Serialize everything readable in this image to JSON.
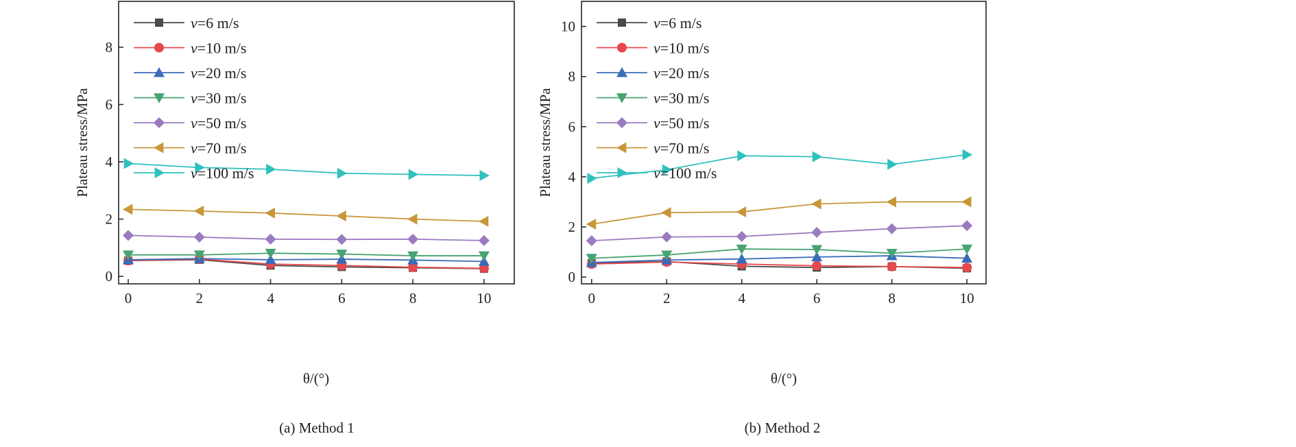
{
  "chart_data": [
    {
      "type": "line",
      "caption": "(a) Method 1",
      "xlabel": "θ/(°)",
      "ylabel": "Plateau stress/MPa",
      "x": [
        0,
        2,
        4,
        6,
        8,
        10
      ],
      "xticks": [
        0,
        2,
        4,
        6,
        8,
        10
      ],
      "yticks": [
        0,
        2,
        4,
        6,
        8
      ],
      "xlim": [
        -0.27,
        10.85
      ],
      "ylim": [
        -0.26,
        9.6
      ],
      "grid": false,
      "legend_position": "top-left",
      "series": [
        {
          "name": "v=6 m/s",
          "label_var": "v",
          "label_rest": "=6 m/s",
          "marker": "square",
          "color": "#4a4a4a",
          "values": [
            0.55,
            0.58,
            0.38,
            0.33,
            0.3,
            0.27
          ]
        },
        {
          "name": "v=10 m/s",
          "label_var": "v",
          "label_rest": "=10 m/s",
          "marker": "circle",
          "color": "#e5484d",
          "values": [
            0.55,
            0.6,
            0.43,
            0.38,
            0.32,
            0.28
          ]
        },
        {
          "name": "v=20 m/s",
          "label_var": "v",
          "label_rest": "=20 m/s",
          "marker": "triangle-up",
          "color": "#3a6bb8",
          "values": [
            0.58,
            0.62,
            0.58,
            0.6,
            0.57,
            0.52
          ]
        },
        {
          "name": "v=30 m/s",
          "label_var": "v",
          "label_rest": "=30 m/s",
          "marker": "triangle-down",
          "color": "#47a372",
          "values": [
            0.75,
            0.75,
            0.81,
            0.78,
            0.72,
            0.72
          ]
        },
        {
          "name": "v=50 m/s",
          "label_var": "v",
          "label_rest": "=50 m/s",
          "marker": "diamond",
          "color": "#9a7bc0",
          "values": [
            1.43,
            1.37,
            1.3,
            1.29,
            1.3,
            1.25
          ]
        },
        {
          "name": "v=70 m/s",
          "label_var": "v",
          "label_rest": "=70 m/s",
          "marker": "triangle-left",
          "color": "#c8973a",
          "values": [
            2.34,
            2.28,
            2.21,
            2.11,
            2.0,
            1.92
          ]
        },
        {
          "name": "v=100 m/s",
          "label_var": "v",
          "label_rest": "=100 m/s",
          "marker": "triangle-right",
          "color": "#30c0bd",
          "values": [
            3.94,
            3.8,
            3.74,
            3.6,
            3.56,
            3.52
          ]
        }
      ]
    },
    {
      "type": "line",
      "caption": "(b) Method 2",
      "xlabel": "θ/(°)",
      "ylabel": "Plateau stress/MPa",
      "x": [
        0,
        2,
        4,
        6,
        8,
        10
      ],
      "xticks": [
        0,
        2,
        4,
        6,
        8,
        10
      ],
      "yticks": [
        0,
        2,
        4,
        6,
        8,
        10
      ],
      "xlim": [
        -0.27,
        10.51
      ],
      "ylim": [
        -0.27,
        11.0
      ],
      "grid": false,
      "legend_position": "top-left",
      "series": [
        {
          "name": "v=6 m/s",
          "label_var": "v",
          "label_rest": "=6 m/s",
          "marker": "square",
          "color": "#4a4a4a",
          "values": [
            0.55,
            0.62,
            0.43,
            0.38,
            0.42,
            0.35
          ]
        },
        {
          "name": "v=10 m/s",
          "label_var": "v",
          "label_rest": "=10 m/s",
          "marker": "circle",
          "color": "#e5484d",
          "values": [
            0.52,
            0.6,
            0.52,
            0.45,
            0.42,
            0.38
          ]
        },
        {
          "name": "v=20 m/s",
          "label_var": "v",
          "label_rest": "=20 m/s",
          "marker": "triangle-up",
          "color": "#3a6bb8",
          "values": [
            0.58,
            0.68,
            0.72,
            0.8,
            0.85,
            0.75
          ]
        },
        {
          "name": "v=30 m/s",
          "label_var": "v",
          "label_rest": "=30 m/s",
          "marker": "triangle-down",
          "color": "#47a372",
          "values": [
            0.75,
            0.88,
            1.12,
            1.1,
            0.95,
            1.12
          ]
        },
        {
          "name": "v=50 m/s",
          "label_var": "v",
          "label_rest": "=50 m/s",
          "marker": "diamond",
          "color": "#9a7bc0",
          "values": [
            1.45,
            1.6,
            1.62,
            1.78,
            1.93,
            2.05
          ]
        },
        {
          "name": "v=70 m/s",
          "label_var": "v",
          "label_rest": "=70 m/s",
          "marker": "triangle-left",
          "color": "#c8973a",
          "values": [
            2.11,
            2.57,
            2.6,
            2.92,
            3.0,
            3.0
          ]
        },
        {
          "name": "v=100 m/s",
          "label_var": "v",
          "label_rest": "=100 m/s",
          "marker": "triangle-right",
          "color": "#30c0bd",
          "values": [
            3.94,
            4.28,
            4.84,
            4.8,
            4.5,
            4.88
          ]
        }
      ]
    }
  ]
}
